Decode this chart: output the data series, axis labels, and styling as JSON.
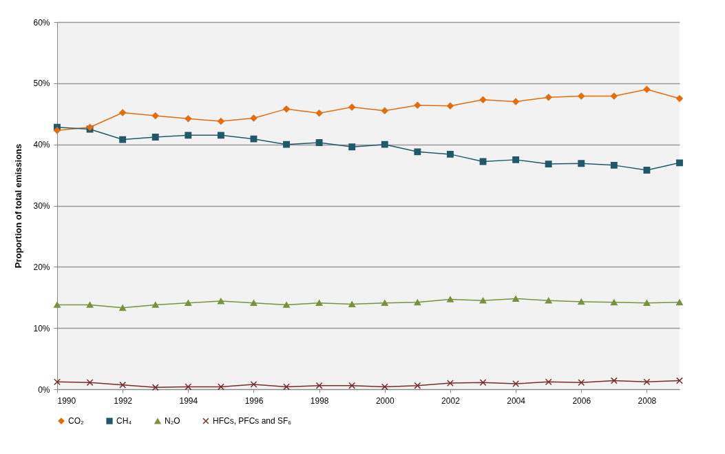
{
  "chart_data": {
    "type": "line",
    "ylabel": "Proportion of total emissions",
    "x": [
      1990,
      1991,
      1992,
      1993,
      1994,
      1995,
      1996,
      1997,
      1998,
      1999,
      2000,
      2001,
      2002,
      2003,
      2004,
      2005,
      2006,
      2007,
      2008,
      2009
    ],
    "xlim": [
      1990,
      2009
    ],
    "xticks": [
      1990,
      1992,
      1994,
      1996,
      1998,
      2000,
      2002,
      2004,
      2006,
      2008
    ],
    "ylim": [
      0,
      60
    ],
    "yticks": [
      {
        "value": 0,
        "label": "0%"
      },
      {
        "value": 10,
        "label": "10%"
      },
      {
        "value": 20,
        "label": "20%"
      },
      {
        "value": 30,
        "label": "30%"
      },
      {
        "value": 40,
        "label": "40%"
      },
      {
        "value": 50,
        "label": "50%"
      },
      {
        "value": 60,
        "label": "60%"
      }
    ],
    "grid": "y",
    "legend": "bottom",
    "series": [
      {
        "name": "CO₂",
        "color": "#e46c0a",
        "marker": "diamond",
        "values": [
          42.3,
          42.8,
          45.2,
          44.7,
          44.2,
          43.8,
          44.3,
          45.8,
          45.1,
          46.1,
          45.5,
          46.4,
          46.3,
          47.3,
          47.0,
          47.7,
          47.9,
          47.9,
          49.0,
          47.5
        ]
      },
      {
        "name": "CH₄",
        "color": "#215968",
        "marker": "square",
        "values": [
          42.8,
          42.5,
          40.8,
          41.2,
          41.5,
          41.5,
          40.9,
          40.0,
          40.3,
          39.6,
          40.0,
          38.8,
          38.4,
          37.2,
          37.5,
          36.8,
          36.9,
          36.6,
          35.8,
          37.0
        ]
      },
      {
        "name": "N₂O",
        "color": "#77933c",
        "marker": "triangle",
        "values": [
          13.8,
          13.8,
          13.3,
          13.8,
          14.1,
          14.4,
          14.1,
          13.8,
          14.1,
          13.9,
          14.1,
          14.2,
          14.7,
          14.5,
          14.8,
          14.5,
          14.3,
          14.2,
          14.1,
          14.2
        ]
      },
      {
        "name": "HFCs, PFCs and SF₆",
        "color": "#772c2a",
        "marker": "cross",
        "values": [
          1.2,
          1.1,
          0.7,
          0.3,
          0.4,
          0.4,
          0.8,
          0.4,
          0.6,
          0.6,
          0.4,
          0.6,
          1.0,
          1.1,
          0.9,
          1.2,
          1.1,
          1.4,
          1.2,
          1.4
        ]
      }
    ]
  }
}
